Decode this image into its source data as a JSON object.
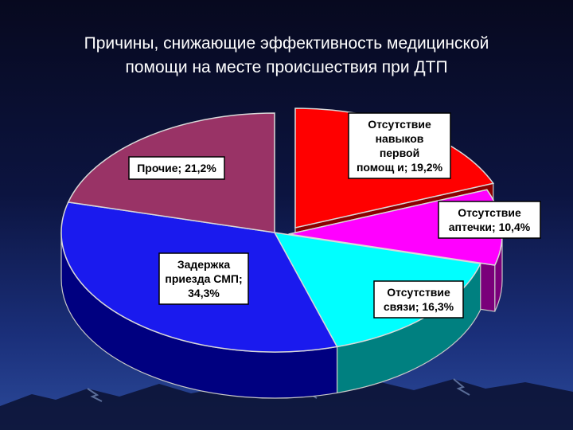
{
  "slide": {
    "title": "Причины, снижающие эффективность медицинской\nпомощи на месте происшествия при ДТП"
  },
  "chart_data": {
    "type": "pie",
    "title": "",
    "slices": [
      {
        "label": "Отсутствие\nнавыков\nпервой\nпомощ и; 19,2%",
        "value": 19.2,
        "color": "#ff0000",
        "side_color": "#8b0000",
        "exploded": true
      },
      {
        "label": "Отсутствие\nаптечки; 10,4%",
        "value": 10.4,
        "color": "#ff00ff",
        "side_color": "#7a007a",
        "exploded": true
      },
      {
        "label": "Отсутствие\nсвязи; 16,3%",
        "value": 16.3,
        "color": "#00ffff",
        "side_color": "#008080"
      },
      {
        "label": "Задержка\nприезда СМП;\n34,3%",
        "value": 34.3,
        "color": "#1a1aee",
        "side_color": "#000080"
      },
      {
        "label": "Прочие; 21,2%",
        "value": 21.2,
        "color": "#993366",
        "side_color": "#4d1a33"
      }
    ]
  }
}
